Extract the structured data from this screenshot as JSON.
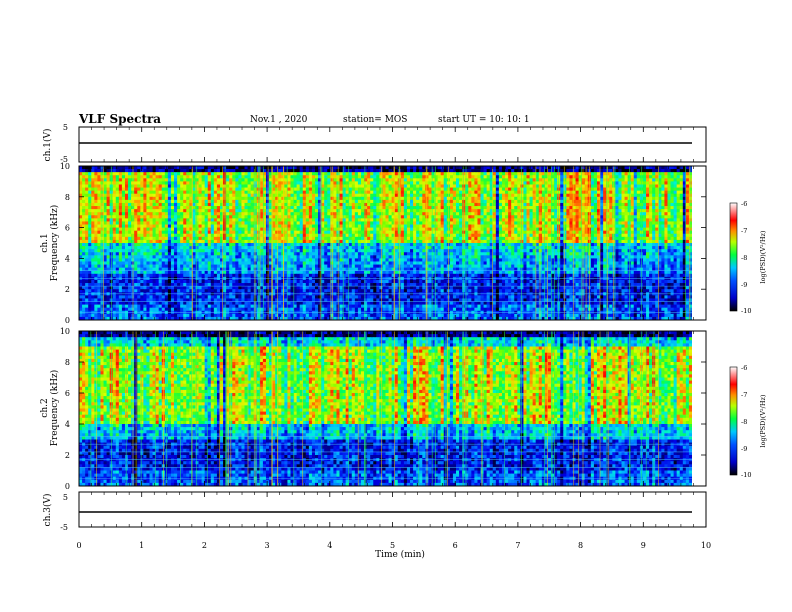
{
  "header": {
    "title": "VLF Spectra",
    "date": "Nov.1 , 2020",
    "station": "station= MOS",
    "start": "start UT = 10: 10: 1"
  },
  "chart_data": [
    {
      "type": "line",
      "name_label": "ch.1(V)",
      "ylabel": "ch.1(V)",
      "ylim": [
        -5,
        5
      ],
      "yticks": [
        "5",
        "-5"
      ],
      "x": [
        0,
        10
      ],
      "values": [
        0,
        0
      ],
      "note_level": 0
    },
    {
      "type": "heatmap",
      "ylabel": "ch.1\nFrequency (kHz)",
      "ylabel_lines": [
        "ch.1",
        "Frequency (kHz)"
      ],
      "ylim": [
        0,
        10
      ],
      "yticks": [
        "0",
        "2",
        "4",
        "6",
        "8",
        "10"
      ],
      "xlim": [
        0,
        10
      ],
      "colorbar": {
        "label": "log(PSD)(V²/Hz)",
        "range": [
          -10,
          -6
        ],
        "ticks": [
          "-6",
          "-7",
          "-8",
          "-9",
          "-10"
        ]
      },
      "dominant_band_khz": [
        5,
        9.5
      ]
    },
    {
      "type": "heatmap",
      "ylabel": "ch.2\nFrequency (kHz)",
      "ylabel_lines": [
        "ch.2",
        "Frequency (kHz)"
      ],
      "ylim": [
        0,
        10
      ],
      "yticks": [
        "0",
        "2",
        "4",
        "6",
        "8",
        "10"
      ],
      "xlim": [
        0,
        10
      ],
      "colorbar": {
        "label": "log(PSD)(V²/Hz)",
        "range": [
          -10,
          -6
        ],
        "ticks": [
          "-6",
          "-7",
          "-8",
          "-9",
          "-10"
        ]
      },
      "dominant_band_khz": [
        4,
        9
      ]
    },
    {
      "type": "line",
      "ylabel": "ch.3(V)",
      "ylim": [
        -5,
        5
      ],
      "yticks": [
        "5",
        "-5"
      ],
      "x": [
        0,
        10
      ],
      "values": [
        0,
        0
      ]
    }
  ],
  "xaxis": {
    "label": "Time (min)",
    "ticks": [
      "0",
      "1",
      "2",
      "3",
      "4",
      "5",
      "6",
      "7",
      "8",
      "9",
      "10"
    ]
  }
}
